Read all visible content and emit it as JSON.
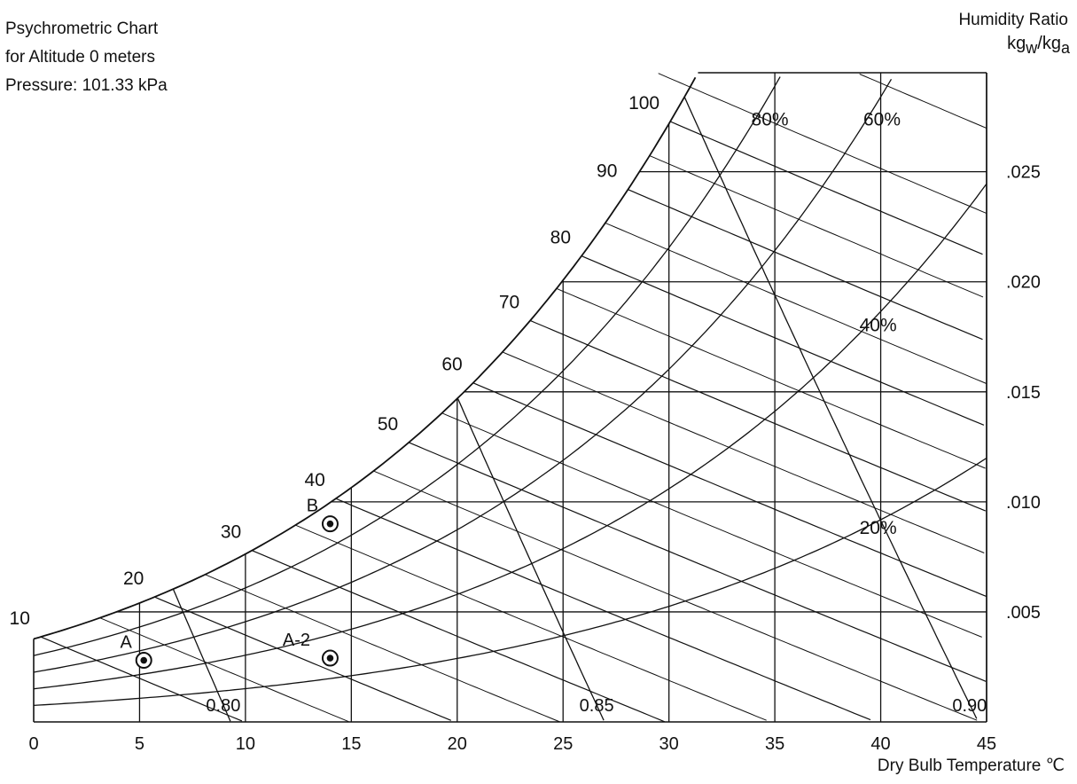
{
  "chart_data": {
    "type": "psychrometric",
    "title": [
      "Psychrometric Chart",
      "for Altitude 0 meters",
      "Pressure: 101.33 kPa"
    ],
    "ylabel": [
      "Humidity Ratio",
      "kg",
      "w",
      "/kg",
      "a"
    ],
    "xlabel": "Dry Bulb Temperature ℃",
    "xlim": [
      0,
      45
    ],
    "ylim": [
      0,
      0.0295
    ],
    "x_ticks": [
      0,
      5,
      10,
      15,
      20,
      25,
      30,
      35,
      40,
      45
    ],
    "x_tick_labels": [
      "0",
      "5",
      "10",
      "15",
      "20",
      "25",
      "30",
      "35",
      "40",
      "45"
    ],
    "y_ticks": [
      0.005,
      0.01,
      0.015,
      0.02,
      0.025
    ],
    "y_tick_labels": [
      ".005",
      ".010",
      ".015",
      ".020",
      ".025"
    ],
    "pressure_kpa": 101.33,
    "rh_curves": [
      {
        "rh": 1.0,
        "label": ""
      },
      {
        "rh": 0.8,
        "label": "80%"
      },
      {
        "rh": 0.6,
        "label": "60%"
      },
      {
        "rh": 0.4,
        "label": "40%"
      },
      {
        "rh": 0.2,
        "label": "20%"
      }
    ],
    "enthalpy_lines": [
      10,
      20,
      30,
      40,
      50,
      60,
      70,
      80,
      90,
      100
    ],
    "enthalpy_labels": [
      "10",
      "20",
      "30",
      "40",
      "50",
      "60",
      "70",
      "80",
      "90",
      "100"
    ],
    "volume_lines": [
      {
        "v": 0.8,
        "label": "0.80"
      },
      {
        "v": 0.85,
        "label": "0.85"
      },
      {
        "v": 0.9,
        "label": "0.90"
      }
    ],
    "points": [
      {
        "label": "A",
        "t": 5.2,
        "w": 0.0028
      },
      {
        "label": "A-2",
        "t": 14,
        "w": 0.0029
      },
      {
        "label": "B",
        "t": 14,
        "w": 0.009
      }
    ]
  }
}
